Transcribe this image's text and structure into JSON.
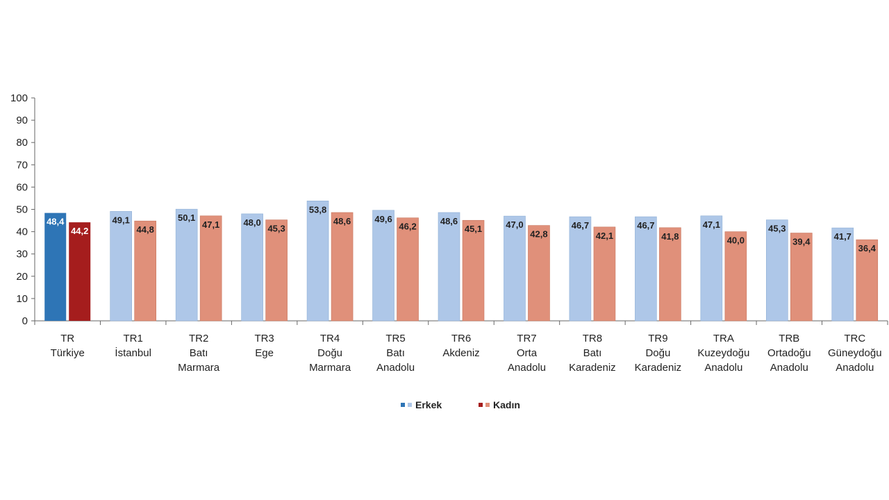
{
  "chart_data": {
    "type": "bar",
    "title": "",
    "xlabel": "",
    "ylabel": "",
    "ylim": [
      0,
      100
    ],
    "yticks": [
      0,
      10,
      20,
      30,
      40,
      50,
      60,
      70,
      80,
      90,
      100
    ],
    "grid": false,
    "legend_position": "bottom-center",
    "categories": [
      [
        "TR",
        "Türkiye"
      ],
      [
        "TR1",
        "İstanbul"
      ],
      [
        "TR2",
        "Batı",
        "Marmara"
      ],
      [
        "TR3",
        "Ege"
      ],
      [
        "TR4",
        "Doğu",
        "Marmara"
      ],
      [
        "TR5",
        "Batı",
        "Anadolu"
      ],
      [
        "TR6",
        "Akdeniz"
      ],
      [
        "TR7",
        "Orta",
        "Anadolu"
      ],
      [
        "TR8",
        "Batı",
        "Karadeniz"
      ],
      [
        "TR9",
        "Doğu",
        "Karadeniz"
      ],
      [
        "TRA",
        "Kuzeydoğu",
        "Anadolu"
      ],
      [
        "TRB",
        "Ortadoğu",
        "Anadolu"
      ],
      [
        "TRC",
        "Güneydoğu",
        "Anadolu"
      ]
    ],
    "series": [
      {
        "name": "Erkek",
        "color": "#aec7e8",
        "highlight_color": "#2e75b6",
        "values": [
          48.4,
          49.1,
          50.1,
          48.0,
          53.8,
          49.6,
          48.6,
          47.0,
          46.7,
          46.7,
          47.1,
          45.3,
          41.7
        ],
        "labels": [
          "48,4",
          "49,1",
          "50,1",
          "48,0",
          "53,8",
          "49,6",
          "48,6",
          "47,0",
          "46,7",
          "46,7",
          "47,1",
          "45,3",
          "41,7"
        ]
      },
      {
        "name": "Kadın",
        "color": "#e0907a",
        "highlight_color": "#a51d1d",
        "values": [
          44.2,
          44.8,
          47.1,
          45.3,
          48.6,
          46.2,
          45.1,
          42.8,
          42.1,
          41.8,
          40.0,
          39.4,
          36.4
        ],
        "labels": [
          "44,2",
          "44,8",
          "47,1",
          "45,3",
          "48,6",
          "46,2",
          "45,1",
          "42,8",
          "42,1",
          "41,8",
          "40,0",
          "39,4",
          "36,4"
        ]
      }
    ],
    "highlight_category_index": 0
  }
}
